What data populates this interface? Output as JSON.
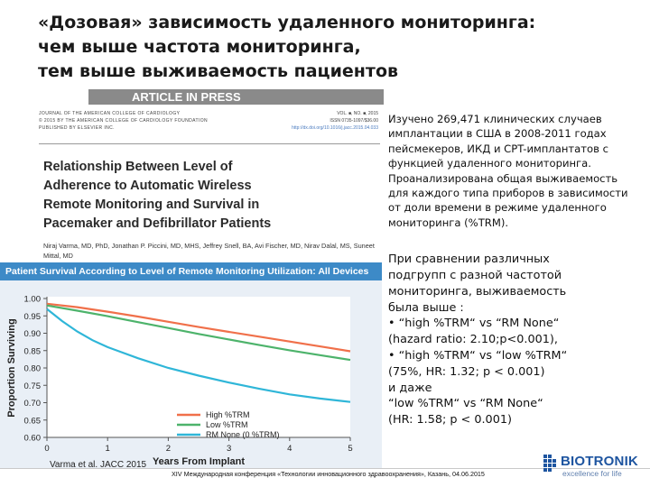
{
  "slide": {
    "title_lines": [
      "«Дозовая» зависимость удаленного мониторинга:",
      "чем выше частота мониторинга,",
      "тем выше выживаемость пациентов"
    ]
  },
  "article": {
    "banner": "ARTICLE IN PRESS",
    "journal_lines": [
      "JOURNAL OF THE AMERICAN COLLEGE OF CARDIOLOGY",
      "© 2015 BY THE AMERICAN COLLEGE OF CARDIOLOGY FOUNDATION",
      "PUBLISHED BY ELSEVIER INC."
    ],
    "journal_right": [
      "VOL. ■, NO. ■, 2015",
      "ISSN 0735-1097/$36.00",
      "http://dx.doi.org/10.1016/j.jacc.2015.04.033"
    ],
    "title_lines": [
      "Relationship Between Level of",
      "Adherence to Automatic Wireless",
      "Remote Monitoring and Survival in",
      "Pacemaker and Defibrillator Patients"
    ],
    "authors": "Niraj Varma, MD, PhD, Jonathan P. Piccini, MD, MHS, Jeffrey Snell, BA, Avi Fischer, MD, Nirav Dalal, MS, Suneet Mittal, MD"
  },
  "chart_panel": {
    "header": "Patient Survival According to Level of Remote Monitoring Utilization: All Devices"
  },
  "chart_data": {
    "type": "line",
    "title": "Patient Survival According to Level of Remote Monitoring Utilization: All Devices",
    "xlabel": "Years From Implant",
    "ylabel": "Proportion Surviving",
    "xlim": [
      0,
      5
    ],
    "ylim": [
      0.6,
      1.0
    ],
    "x_ticks": [
      0,
      1,
      2,
      3,
      4,
      5
    ],
    "y_ticks": [
      "0.60",
      "0.65",
      "0.70",
      "0.75",
      "0.80",
      "0.85",
      "0.90",
      "0.95",
      "1.00"
    ],
    "legend_position": "bottom-center",
    "grid": false,
    "series": [
      {
        "name": "High %TRM",
        "color": "#f0704a",
        "x": [
          0,
          0.5,
          1,
          1.5,
          2,
          2.5,
          3,
          3.5,
          4,
          4.5,
          5
        ],
        "y": [
          0.985,
          0.975,
          0.962,
          0.948,
          0.933,
          0.918,
          0.904,
          0.89,
          0.876,
          0.862,
          0.848
        ]
      },
      {
        "name": "Low %TRM",
        "color": "#4db36b",
        "x": [
          0,
          0.5,
          1,
          1.5,
          2,
          2.5,
          3,
          3.5,
          4,
          4.5,
          5
        ],
        "y": [
          0.98,
          0.965,
          0.949,
          0.932,
          0.915,
          0.898,
          0.882,
          0.866,
          0.851,
          0.837,
          0.823
        ]
      },
      {
        "name": "RM None (0 %TRM)",
        "color": "#2fb6d8",
        "x": [
          0,
          0.25,
          0.5,
          0.75,
          1,
          1.5,
          2,
          2.5,
          3,
          3.5,
          4,
          4.5,
          5
        ],
        "y": [
          0.97,
          0.935,
          0.905,
          0.88,
          0.86,
          0.828,
          0.8,
          0.778,
          0.758,
          0.74,
          0.724,
          0.712,
          0.702
        ]
      }
    ]
  },
  "right_text": {
    "para1": "Изучено 269,471 клинических случаев имплантации в США в 2008-2011 годах пейсмекеров, ИКД и CPT-имплантатов с функцией удаленного мониторинга. Проанализирована общая выживаемость для каждого типа приборов в зависимости от доли времени в режиме удаленного мониторинга (%TRM).",
    "para2_lines": [
      "При сравнении различных",
      "подгрупп с разной частотой",
      "мониторинга, выживаемость",
      "была выше :",
      "• “high %TRM“ vs “RM None“",
      "(hazard ratio: 2.10;p<0.001),",
      "• “high %TRM“ vs “low %TRM“",
      "(75%, HR: 1.32; p < 0.001)",
      "и даже",
      " “low %TRM“ vs “RM None“",
      "(HR: 1.58; p < 0.001)"
    ]
  },
  "citation": "Varma et al. JACC 2015",
  "footer": "XIV Международная конференция «Технологии инновационного здравоохранения», Казань, 04.06.2015",
  "logo": {
    "name": "BIOTRONIK",
    "tagline": "excellence for life",
    "color": "#1e55a0"
  }
}
